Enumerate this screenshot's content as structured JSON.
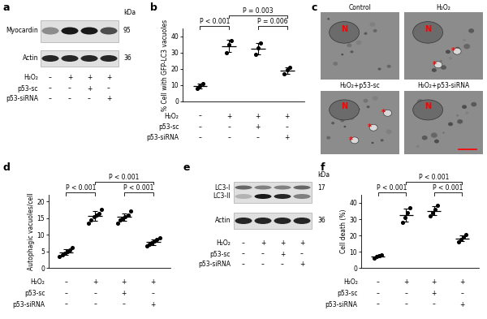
{
  "chart_data": [
    {
      "label": "b",
      "type": "scatter",
      "y_label": "% Cell with GFP-LC3 vacuoles",
      "categories": [
        null,
        null,
        null,
        null
      ],
      "values": [
        [
          8,
          9.5,
          11
        ],
        [
          30,
          35,
          37.5
        ],
        [
          29,
          33,
          36
        ],
        [
          17,
          19.5,
          21
        ]
      ],
      "means": [
        9.5,
        34.2,
        32.7,
        19.2
      ],
      "errors": [
        1.5,
        3.8,
        3.5,
        2
      ],
      "color": "#000000",
      "marker": "o",
      "ylim": [
        0,
        45
      ],
      "yticks": [
        0,
        10,
        20,
        30,
        40
      ],
      "conditions": [
        {
          "name": "H₂O₂",
          "signs": [
            "–",
            "+",
            "+",
            "+"
          ]
        },
        {
          "name": "p53-sc",
          "signs": [
            "–",
            "–",
            "+",
            "–"
          ]
        },
        {
          "name": "p53-siRNA",
          "signs": [
            "–",
            "–",
            "–",
            "+"
          ]
        }
      ],
      "annotations": [
        {
          "text": "P < 0.001",
          "between": [
            0,
            1
          ]
        },
        {
          "text": "P = 0.003",
          "between": [
            1,
            3
          ]
        },
        {
          "text": "P = 0.006",
          "between": [
            2,
            3
          ]
        }
      ]
    },
    {
      "label": "d",
      "type": "scatter",
      "y_label": "Autophagic vacuoles/cell",
      "categories": [
        null,
        null,
        null,
        null
      ],
      "values": [
        [
          3.5,
          4,
          4.5,
          5,
          5.5,
          6
        ],
        [
          13.5,
          14.5,
          15.5,
          16,
          16.5,
          17.5
        ],
        [
          13.5,
          14.5,
          15,
          15.5,
          16,
          17
        ],
        [
          6.5,
          7,
          7.5,
          8,
          8.5,
          9
        ]
      ],
      "means": [
        4.75,
        15.6,
        15.3,
        7.75
      ],
      "errors": [
        0.9,
        1.4,
        1.2,
        0.9
      ],
      "color": "#000000",
      "marker": "o",
      "ylim": [
        0,
        22
      ],
      "yticks": [
        0,
        5,
        10,
        15,
        20
      ],
      "conditions": [
        {
          "name": "H₂O₂",
          "signs": [
            "–",
            "+",
            "+",
            "+"
          ]
        },
        {
          "name": "p53-sc",
          "signs": [
            "–",
            "–",
            "+",
            "–"
          ]
        },
        {
          "name": "p53-siRNA",
          "signs": [
            "–",
            "–",
            "–",
            "+"
          ]
        }
      ],
      "annotations": [
        {
          "text": "P < 0.001",
          "between": [
            0,
            1
          ]
        },
        {
          "text": "P < 0.001",
          "between": [
            1,
            3
          ]
        },
        {
          "text": "P < 0.001",
          "between": [
            2,
            3
          ]
        }
      ]
    },
    {
      "label": "f",
      "type": "scatter",
      "y_label": "Cell death (%)",
      "categories": [
        null,
        null,
        null,
        null
      ],
      "values": [
        [
          6,
          7,
          7.5,
          8
        ],
        [
          28,
          31,
          34,
          37
        ],
        [
          32,
          34,
          36,
          38.5
        ],
        [
          16,
          17.5,
          19,
          20.5
        ]
      ],
      "means": [
        7.1,
        32.5,
        35.1,
        18.2
      ],
      "errors": [
        0.8,
        3.8,
        2.8,
        1.9
      ],
      "color": "#000000",
      "marker": "o",
      "ylim": [
        0,
        45
      ],
      "yticks": [
        0,
        10,
        20,
        30,
        40
      ],
      "conditions": [
        {
          "name": "H₂O₂",
          "signs": [
            "–",
            "+",
            "+",
            "+"
          ]
        },
        {
          "name": "p53-sc",
          "signs": [
            "–",
            "–",
            "+",
            "–"
          ]
        },
        {
          "name": "p53-siRNA",
          "signs": [
            "–",
            "–",
            "–",
            "+"
          ]
        }
      ],
      "annotations": [
        {
          "text": "P < 0.001",
          "between": [
            0,
            1
          ]
        },
        {
          "text": "P < 0.001",
          "between": [
            1,
            3
          ]
        },
        {
          "text": "P < 0.001",
          "between": [
            2,
            3
          ]
        }
      ]
    }
  ],
  "blots": [
    {
      "label": "a",
      "kda_label": "kDa",
      "rows": [
        {
          "name": "Myocardin",
          "kda": 95,
          "intensity": [
            0.45,
            0.9,
            0.9,
            0.7
          ]
        },
        {
          "name": "Actin",
          "kda": 36,
          "intensity": [
            0.85,
            0.85,
            0.85,
            0.85
          ]
        }
      ],
      "conditions": [
        {
          "name": "H₂O₂",
          "signs": [
            "–",
            "+",
            "+",
            "+"
          ]
        },
        {
          "name": "p53-sc",
          "signs": [
            "–",
            "–",
            "+",
            "–"
          ]
        },
        {
          "name": "p53-siRNA",
          "signs": [
            "–",
            "–",
            "–",
            "+"
          ]
        }
      ]
    },
    {
      "label": "e",
      "kda_label": "kDa",
      "rows": [
        {
          "name": "LC3-I",
          "kda": 17,
          "intensity": [
            0.6,
            0.5,
            0.5,
            0.6
          ]
        },
        {
          "name": "LC3-II",
          "intensity": [
            0.3,
            0.9,
            0.85,
            0.5
          ]
        },
        {
          "name": "Actin",
          "kda": 36,
          "intensity": [
            0.85,
            0.85,
            0.85,
            0.85
          ]
        }
      ],
      "conditions": [
        {
          "name": "H₂O₂",
          "signs": [
            "–",
            "+",
            "+",
            "+"
          ]
        },
        {
          "name": "p53-sc",
          "signs": [
            "–",
            "–",
            "+",
            "–"
          ]
        },
        {
          "name": "p53-siRNA",
          "signs": [
            "–",
            "–",
            "–",
            "+"
          ]
        }
      ]
    }
  ],
  "micrographs": {
    "label": "c",
    "panels": [
      {
        "title": "Control",
        "marks": [
          "N"
        ]
      },
      {
        "title": "H₂O₂",
        "marks": [
          "N",
          "*",
          "*"
        ]
      },
      {
        "title": "H₂O₂+p53-sc",
        "marks": [
          "N",
          "*",
          "*",
          "*"
        ]
      },
      {
        "title": "H₂O₂+p53-siRNA",
        "marks": [
          "N"
        ]
      }
    ]
  }
}
